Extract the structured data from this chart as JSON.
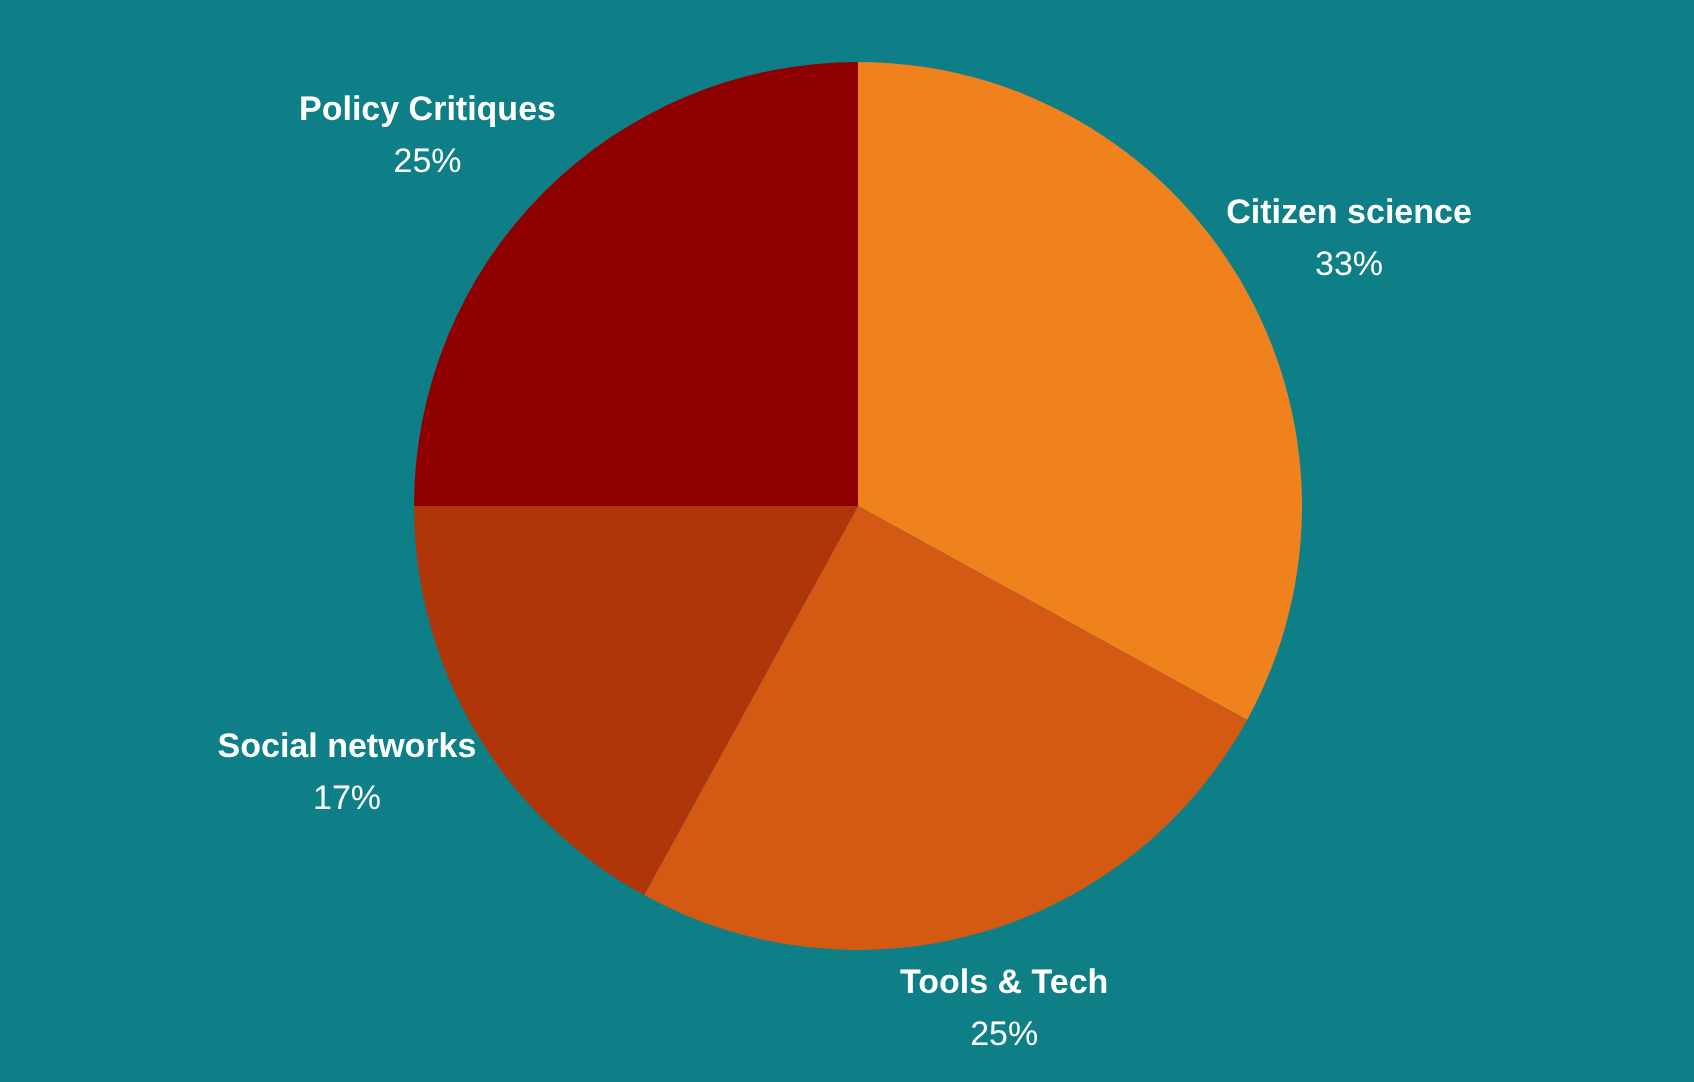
{
  "chart_data": {
    "type": "pie",
    "categories": [
      "Citizen science",
      "Tools & Tech",
      "Social networks",
      "Policy Critiques"
    ],
    "values": [
      33,
      25,
      17,
      25
    ],
    "colors": [
      "#f0821e",
      "#d45a14",
      "#b03508",
      "#8e0000"
    ],
    "value_labels": [
      "33%",
      "25%",
      "17%",
      "25%"
    ]
  }
}
